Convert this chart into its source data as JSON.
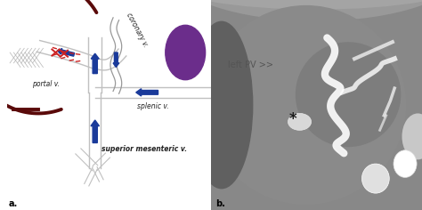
{
  "fig_width": 4.74,
  "fig_height": 2.36,
  "dpi": 100,
  "bg_color": "#ffffff",
  "panel_a": {
    "label": "a.",
    "liver_color": "#5a0a0a",
    "vessel_outline_color": "#c0c0c0",
    "vessel_fill_color": "#ffffff",
    "blue_color": "#1a3a9a",
    "red_color": "#cc2222",
    "spleen_color": "#6b2d8b",
    "crosshatch_color": "#aaaaaa",
    "coronary_color": "#c8c8c8",
    "labels": {
      "portal_v": "portal v.",
      "splenic_v": "splenic v.",
      "superior_mesenteric_v": "superior mesenteric v.",
      "coronary_v": "coronary v."
    },
    "label_fontsize": 5.5,
    "label_color": "#222222"
  },
  "panel_b": {
    "label": "b.",
    "label_left_pv": "left PV >>",
    "label_asterisk": "*",
    "label_fontsize": 7.0,
    "text_color": "#555555"
  }
}
